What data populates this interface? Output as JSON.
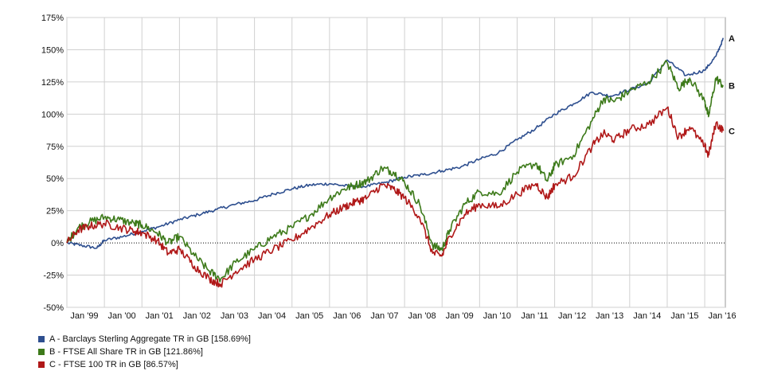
{
  "chart_data": {
    "type": "line",
    "x_ticks": [
      "Jan '99",
      "Jan '00",
      "Jan '01",
      "Jan '02",
      "Jan '03",
      "Jan '04",
      "Jan '05",
      "Jan '06",
      "Jan '07",
      "Jan '08",
      "Jan '09",
      "Jan '10",
      "Jan '11",
      "Jan '12",
      "Jan '13",
      "Jan '14",
      "Jan '15",
      "Jan '16"
    ],
    "y_ticks": [
      "175%",
      "150%",
      "125%",
      "100%",
      "75%",
      "50%",
      "25%",
      "0%",
      "-25%",
      "-50%"
    ],
    "ylim": [
      -50,
      175
    ],
    "xlim": [
      1999.0,
      2016.55
    ],
    "grid": true,
    "zero_line": "dotted",
    "series": [
      {
        "name": "A - Barclays Sterling Aggregate TR in GB [158.69%]",
        "label": "A",
        "color": "#2e4f8f",
        "x": [
          1999.0,
          1999.4,
          1999.8,
          2000.0,
          2000.5,
          2001.0,
          2001.5,
          2002.0,
          2002.5,
          2003.0,
          2003.5,
          2004.0,
          2004.5,
          2005.0,
          2005.5,
          2006.0,
          2006.5,
          2007.0,
          2007.5,
          2008.0,
          2008.5,
          2009.0,
          2009.5,
          2010.0,
          2010.5,
          2011.0,
          2011.5,
          2012.0,
          2012.5,
          2013.0,
          2013.5,
          2014.0,
          2014.5,
          2015.0,
          2015.5,
          2016.0,
          2016.3,
          2016.5
        ],
        "y": [
          0,
          -2,
          -4,
          2,
          5,
          9,
          13,
          18,
          22,
          26,
          30,
          33,
          38,
          42,
          45,
          46,
          44,
          44,
          47,
          51,
          53,
          56,
          59,
          65,
          70,
          80,
          89,
          100,
          108,
          117,
          114,
          119,
          124,
          142,
          130,
          134,
          145,
          159
        ]
      },
      {
        "name": "B - FTSE All Share TR in GB [121.86%]",
        "label": "B",
        "color": "#3d7a1a",
        "x": [
          1999.0,
          1999.3,
          1999.6,
          2000.0,
          2000.4,
          2000.8,
          2001.0,
          2001.4,
          2001.7,
          2002.0,
          2002.4,
          2002.8,
          2003.1,
          2003.5,
          2004.0,
          2004.5,
          2005.0,
          2005.5,
          2006.0,
          2006.4,
          2006.7,
          2007.0,
          2007.4,
          2007.7,
          2008.0,
          2008.4,
          2008.75,
          2009.0,
          2009.2,
          2009.6,
          2010.0,
          2010.5,
          2011.0,
          2011.5,
          2011.8,
          2012.0,
          2012.5,
          2013.0,
          2013.3,
          2013.6,
          2014.0,
          2014.5,
          2015.0,
          2015.3,
          2015.6,
          2016.0,
          2016.1,
          2016.3,
          2016.5
        ],
        "y": [
          0,
          12,
          16,
          20,
          18,
          15,
          14,
          8,
          0,
          5,
          -10,
          -22,
          -28,
          -15,
          -5,
          5,
          12,
          22,
          35,
          42,
          45,
          48,
          58,
          55,
          47,
          30,
          -2,
          -5,
          10,
          30,
          40,
          38,
          55,
          62,
          48,
          60,
          68,
          95,
          112,
          110,
          118,
          125,
          140,
          120,
          128,
          110,
          98,
          128,
          122
        ]
      },
      {
        "name": "C - FTSE 100 TR in GB [86.57%]",
        "label": "C",
        "color": "#b01818",
        "x": [
          1999.0,
          1999.3,
          1999.6,
          2000.0,
          2000.4,
          2000.8,
          2001.0,
          2001.4,
          2001.7,
          2002.0,
          2002.4,
          2002.8,
          2003.1,
          2003.5,
          2004.0,
          2004.5,
          2005.0,
          2005.5,
          2006.0,
          2006.4,
          2006.7,
          2007.0,
          2007.4,
          2007.7,
          2008.0,
          2008.4,
          2008.75,
          2009.0,
          2009.2,
          2009.6,
          2010.0,
          2010.5,
          2011.0,
          2011.5,
          2011.8,
          2012.0,
          2012.5,
          2013.0,
          2013.3,
          2013.6,
          2014.0,
          2014.5,
          2015.0,
          2015.3,
          2015.6,
          2016.0,
          2016.1,
          2016.3,
          2016.5
        ],
        "y": [
          0,
          10,
          13,
          15,
          12,
          9,
          8,
          2,
          -8,
          -5,
          -18,
          -28,
          -32,
          -22,
          -13,
          -5,
          2,
          12,
          22,
          28,
          32,
          35,
          45,
          42,
          35,
          20,
          -8,
          -10,
          5,
          22,
          30,
          28,
          38,
          46,
          35,
          45,
          52,
          75,
          85,
          80,
          88,
          92,
          105,
          82,
          90,
          75,
          68,
          93,
          87
        ]
      }
    ]
  },
  "legend": {
    "items": [
      {
        "text": "A - Barclays Sterling Aggregate TR in GB [158.69%]",
        "color": "#2e4f8f"
      },
      {
        "text": "B - FTSE All Share TR in GB [121.86%]",
        "color": "#3d7a1a"
      },
      {
        "text": "C - FTSE 100 TR in GB [86.57%]",
        "color": "#b01818"
      }
    ]
  }
}
